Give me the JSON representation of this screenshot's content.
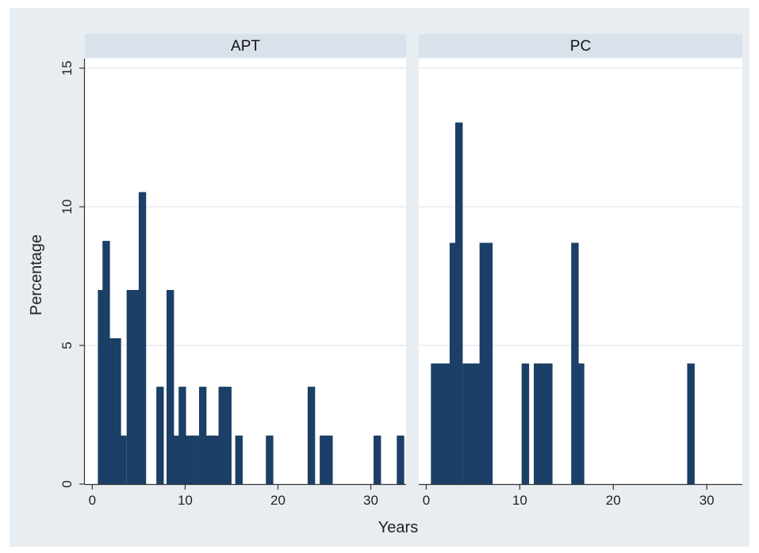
{
  "chart_data": {
    "type": "bar",
    "xlabel": "Years",
    "ylabel": "Percentage",
    "ylim": [
      0,
      15
    ],
    "yticks": [
      0,
      5,
      10,
      15
    ],
    "xlim": [
      -0.8,
      33.8
    ],
    "xticks": [
      0,
      10,
      20,
      30
    ],
    "grid": true,
    "bar_width": 0.8,
    "colors": {
      "bar": "#1b3f66",
      "outer_bg": "#e8edf2",
      "strip_bg": "#d9e2ea",
      "plot_bg": "#ffffff",
      "grid": "#e6ebf0"
    },
    "panels": [
      {
        "title": "APT",
        "bars": [
          {
            "x": 1,
            "value": 7.0
          },
          {
            "x": 1.5,
            "value": 8.77
          },
          {
            "x": 2.1,
            "value": 5.26
          },
          {
            "x": 2.7,
            "value": 5.26
          },
          {
            "x": 3.3,
            "value": 1.75
          },
          {
            "x": 4.1,
            "value": 7.0
          },
          {
            "x": 4.8,
            "value": 7.0
          },
          {
            "x": 5.4,
            "value": 10.53
          },
          {
            "x": 7.3,
            "value": 3.51
          },
          {
            "x": 8.4,
            "value": 7.0
          },
          {
            "x": 9.0,
            "value": 1.75
          },
          {
            "x": 9.7,
            "value": 3.51
          },
          {
            "x": 10.4,
            "value": 1.75
          },
          {
            "x": 11.1,
            "value": 1.75
          },
          {
            "x": 11.9,
            "value": 3.51
          },
          {
            "x": 12.6,
            "value": 1.75
          },
          {
            "x": 13.3,
            "value": 1.75
          },
          {
            "x": 14.0,
            "value": 3.51
          },
          {
            "x": 14.6,
            "value": 3.51
          },
          {
            "x": 15.8,
            "value": 1.75
          },
          {
            "x": 19.1,
            "value": 1.75
          },
          {
            "x": 23.6,
            "value": 3.51
          },
          {
            "x": 24.9,
            "value": 1.75
          },
          {
            "x": 25.5,
            "value": 1.75
          },
          {
            "x": 30.7,
            "value": 1.75
          },
          {
            "x": 33.2,
            "value": 1.75
          }
        ]
      },
      {
        "title": "PC",
        "bars": [
          {
            "x": 0.9,
            "value": 4.35
          },
          {
            "x": 1.6,
            "value": 4.35
          },
          {
            "x": 2.3,
            "value": 4.35
          },
          {
            "x": 2.9,
            "value": 8.7
          },
          {
            "x": 3.5,
            "value": 13.04
          },
          {
            "x": 4.3,
            "value": 4.35
          },
          {
            "x": 4.9,
            "value": 4.35
          },
          {
            "x": 5.5,
            "value": 4.35
          },
          {
            "x": 6.1,
            "value": 8.7
          },
          {
            "x": 6.7,
            "value": 8.7
          },
          {
            "x": 10.6,
            "value": 4.35
          },
          {
            "x": 11.9,
            "value": 4.35
          },
          {
            "x": 12.5,
            "value": 4.35
          },
          {
            "x": 13.1,
            "value": 4.35
          },
          {
            "x": 15.9,
            "value": 8.7
          },
          {
            "x": 16.5,
            "value": 4.35
          },
          {
            "x": 28.3,
            "value": 4.35
          }
        ]
      }
    ]
  }
}
